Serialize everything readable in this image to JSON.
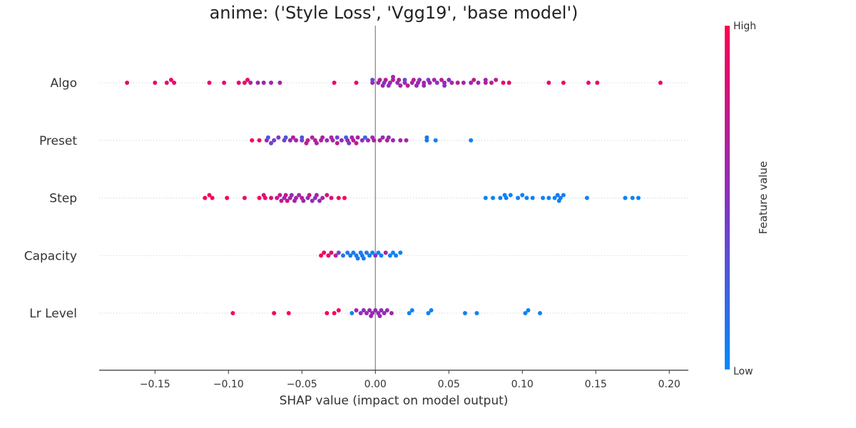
{
  "chart_data": {
    "type": "scatter",
    "subtype": "shap_beeswarm",
    "title": "anime: ('Style Loss', 'Vgg19', 'base model')",
    "xlabel": "SHAP value (impact on model output)",
    "xlim": [
      -0.188,
      0.213
    ],
    "xticks": [
      -0.15,
      -0.1,
      -0.05,
      0.0,
      0.05,
      0.1,
      0.15,
      0.2
    ],
    "xtick_labels": [
      "−0.15",
      "−0.10",
      "−0.05",
      "0.00",
      "0.05",
      "0.10",
      "0.15",
      "0.20"
    ],
    "zero_line": true,
    "grid": false,
    "colorbar": {
      "label": "Feature value",
      "high_label": "High",
      "low_label": "Low",
      "low_color": "#008bfb",
      "high_color": "#ff0052"
    },
    "features": [
      {
        "name": "Algo",
        "points": [
          [
            -0.169,
            0.9
          ],
          [
            -0.15,
            0.9
          ],
          [
            -0.142,
            0.9
          ],
          [
            -0.139,
            0.9
          ],
          [
            -0.137,
            0.9
          ],
          [
            -0.113,
            0.9
          ],
          [
            -0.103,
            0.9
          ],
          [
            -0.093,
            0.9
          ],
          [
            -0.089,
            0.9
          ],
          [
            -0.087,
            0.9
          ],
          [
            -0.028,
            0.9
          ],
          [
            -0.013,
            0.9
          ],
          [
            0.087,
            0.9
          ],
          [
            0.091,
            0.9
          ],
          [
            0.118,
            0.9
          ],
          [
            0.128,
            0.9
          ],
          [
            0.145,
            0.9
          ],
          [
            0.151,
            0.9
          ],
          [
            0.194,
            0.9
          ],
          [
            0.003,
            0.7
          ],
          [
            0.007,
            0.7
          ],
          [
            0.012,
            0.7
          ],
          [
            0.016,
            0.7
          ],
          [
            0.022,
            0.7
          ],
          [
            0.026,
            0.7
          ],
          [
            0.045,
            0.7
          ],
          [
            0.056,
            0.7
          ],
          [
            0.067,
            0.7
          ],
          [
            0.075,
            0.7
          ],
          [
            0.079,
            0.7
          ],
          [
            0.082,
            0.7
          ],
          [
            -0.085,
            0.6
          ],
          [
            -0.08,
            0.6
          ],
          [
            -0.076,
            0.6
          ],
          [
            -0.071,
            0.6
          ],
          [
            -0.065,
            0.6
          ],
          [
            -0.002,
            0.6
          ],
          [
            0.005,
            0.6
          ],
          [
            0.01,
            0.6
          ],
          [
            0.017,
            0.6
          ],
          [
            0.02,
            0.6
          ],
          [
            0.025,
            0.6
          ],
          [
            0.029,
            0.6
          ],
          [
            0.033,
            0.6
          ],
          [
            0.037,
            0.6
          ],
          [
            0.04,
            0.6
          ],
          [
            0.047,
            0.6
          ],
          [
            0.052,
            0.6
          ],
          [
            0.06,
            0.6
          ],
          [
            0.065,
            0.6
          ],
          [
            0.07,
            0.6
          ],
          [
            0.075,
            0.6
          ],
          [
            0.002,
            0.55
          ],
          [
            0.012,
            0.55
          ],
          [
            0.03,
            0.55
          ],
          [
            0.042,
            0.5
          ],
          [
            0.05,
            0.5
          ],
          [
            -0.002,
            0.35
          ],
          [
            0.02,
            0.35
          ],
          [
            0.033,
            0.55
          ],
          [
            0.047,
            0.5
          ],
          [
            0.009,
            0.5
          ],
          [
            0.036,
            0.45
          ],
          [
            0.028,
            0.5
          ],
          [
            0.015,
            0.5
          ],
          [
            0.006,
            0.45
          ]
        ]
      },
      {
        "name": "Preset",
        "points": [
          [
            -0.084,
            1.0
          ],
          [
            -0.079,
            0.9
          ],
          [
            -0.074,
            0.55
          ],
          [
            -0.071,
            0.4
          ],
          [
            -0.066,
            0.45
          ],
          [
            -0.062,
            0.4
          ],
          [
            -0.058,
            0.55
          ],
          [
            -0.054,
            0.6
          ],
          [
            -0.05,
            0.45
          ],
          [
            -0.046,
            0.7
          ],
          [
            -0.043,
            0.65
          ],
          [
            -0.04,
            0.6
          ],
          [
            -0.036,
            0.6
          ],
          [
            -0.033,
            0.55
          ],
          [
            -0.029,
            0.6
          ],
          [
            -0.026,
            0.4
          ],
          [
            -0.023,
            0.55
          ],
          [
            -0.019,
            0.6
          ],
          [
            -0.016,
            0.55
          ],
          [
            -0.012,
            0.6
          ],
          [
            -0.009,
            0.5
          ],
          [
            -0.005,
            0.6
          ],
          [
            -0.002,
            0.55
          ],
          [
            0.005,
            0.55
          ],
          [
            0.009,
            0.55
          ],
          [
            0.012,
            0.55
          ],
          [
            0.017,
            0.6
          ],
          [
            0.021,
            0.6
          ],
          [
            0.035,
            0.1
          ],
          [
            0.041,
            0.05
          ],
          [
            0.065,
            0.05
          ],
          [
            0.035,
            0.1
          ],
          [
            -0.047,
            0.75
          ],
          [
            -0.037,
            0.7
          ],
          [
            -0.026,
            0.7
          ],
          [
            -0.013,
            0.75
          ],
          [
            0.003,
            0.7
          ],
          [
            -0.073,
            0.3
          ],
          [
            -0.061,
            0.3
          ],
          [
            -0.05,
            0.3
          ],
          [
            -0.02,
            0.2
          ],
          [
            -0.007,
            0.2
          ],
          [
            -0.041,
            0.75
          ],
          [
            -0.015,
            0.7
          ],
          [
            0.008,
            0.7
          ],
          [
            -0.056,
            0.7
          ],
          [
            -0.03,
            0.65
          ],
          [
            -0.001,
            0.65
          ],
          [
            -0.069,
            0.4
          ],
          [
            -0.018,
            0.45
          ]
        ]
      },
      {
        "name": "Step",
        "points": [
          [
            -0.116,
            0.95
          ],
          [
            -0.113,
            0.95
          ],
          [
            -0.111,
            0.95
          ],
          [
            -0.101,
            0.95
          ],
          [
            -0.089,
            0.9
          ],
          [
            -0.079,
            1.0
          ],
          [
            -0.075,
            0.95
          ],
          [
            -0.071,
            0.85
          ],
          [
            -0.067,
            0.75
          ],
          [
            -0.064,
            0.7
          ],
          [
            -0.061,
            0.7
          ],
          [
            -0.058,
            0.6
          ],
          [
            -0.055,
            0.6
          ],
          [
            -0.052,
            0.55
          ],
          [
            -0.049,
            0.55
          ],
          [
            -0.046,
            0.55
          ],
          [
            -0.043,
            0.55
          ],
          [
            -0.04,
            0.6
          ],
          [
            -0.036,
            0.65
          ],
          [
            -0.033,
            0.8
          ],
          [
            -0.03,
            0.85
          ],
          [
            -0.025,
            0.95
          ],
          [
            -0.021,
            0.95
          ],
          [
            -0.076,
            0.75
          ],
          [
            -0.06,
            0.85
          ],
          [
            -0.05,
            0.75
          ],
          [
            -0.045,
            0.75
          ],
          [
            -0.062,
            0.55
          ],
          [
            -0.057,
            0.55
          ],
          [
            -0.065,
            0.7
          ],
          [
            -0.054,
            0.6
          ],
          [
            -0.041,
            0.5
          ],
          [
            -0.038,
            0.55
          ],
          [
            0.075,
            0.05
          ],
          [
            0.08,
            0.05
          ],
          [
            0.085,
            0.05
          ],
          [
            0.088,
            0.05
          ],
          [
            0.092,
            0.05
          ],
          [
            0.097,
            0.05
          ],
          [
            0.1,
            0.05
          ],
          [
            0.103,
            0.05
          ],
          [
            0.107,
            0.05
          ],
          [
            0.114,
            0.05
          ],
          [
            0.118,
            0.05
          ],
          [
            0.122,
            0.05
          ],
          [
            0.125,
            0.05
          ],
          [
            0.128,
            0.05
          ],
          [
            0.144,
            0.05
          ],
          [
            0.17,
            0.05
          ],
          [
            0.175,
            0.05
          ],
          [
            0.179,
            0.05
          ],
          [
            0.089,
            0.08
          ],
          [
            0.124,
            0.08
          ],
          [
            0.126,
            0.08
          ]
        ]
      },
      {
        "name": "Capacity",
        "points": [
          [
            -0.037,
            0.95
          ],
          [
            -0.035,
            0.95
          ],
          [
            -0.032,
            0.9
          ],
          [
            -0.03,
            0.9
          ],
          [
            -0.027,
            0.65
          ],
          [
            -0.025,
            0.35
          ],
          [
            -0.022,
            0.15
          ],
          [
            -0.019,
            0.1
          ],
          [
            -0.017,
            0.1
          ],
          [
            -0.015,
            0.1
          ],
          [
            -0.012,
            0.1
          ],
          [
            -0.01,
            0.1
          ],
          [
            -0.008,
            0.1
          ],
          [
            -0.006,
            0.1
          ],
          [
            -0.004,
            0.1
          ],
          [
            -0.002,
            0.05
          ],
          [
            0.0,
            0.5
          ],
          [
            0.002,
            0.05
          ],
          [
            0.004,
            0.05
          ],
          [
            0.007,
            0.65
          ],
          [
            0.01,
            0.05
          ],
          [
            0.012,
            0.05
          ],
          [
            0.014,
            0.05
          ],
          [
            0.017,
            0.05
          ],
          [
            -0.009,
            0.1
          ],
          [
            -0.013,
            0.1
          ]
        ]
      },
      {
        "name": "Lr Level",
        "points": [
          [
            -0.097,
            1.0
          ],
          [
            -0.069,
            0.95
          ],
          [
            -0.059,
            1.0
          ],
          [
            -0.033,
            1.0
          ],
          [
            -0.028,
            0.95
          ],
          [
            -0.025,
            0.95
          ],
          [
            -0.016,
            0.05
          ],
          [
            -0.013,
            0.6
          ],
          [
            -0.01,
            0.55
          ],
          [
            -0.008,
            0.55
          ],
          [
            -0.006,
            0.55
          ],
          [
            -0.004,
            0.55
          ],
          [
            -0.002,
            0.55
          ],
          [
            0.0,
            0.55
          ],
          [
            0.002,
            0.55
          ],
          [
            0.004,
            0.55
          ],
          [
            0.006,
            0.55
          ],
          [
            0.008,
            0.55
          ],
          [
            0.011,
            0.6
          ],
          [
            0.023,
            0.05
          ],
          [
            0.025,
            0.05
          ],
          [
            0.036,
            0.05
          ],
          [
            0.038,
            0.05
          ],
          [
            0.061,
            0.05
          ],
          [
            0.069,
            0.05
          ],
          [
            0.102,
            0.05
          ],
          [
            0.104,
            0.05
          ],
          [
            0.112,
            0.05
          ],
          [
            -0.003,
            0.6
          ],
          [
            0.003,
            0.55
          ]
        ]
      }
    ]
  }
}
